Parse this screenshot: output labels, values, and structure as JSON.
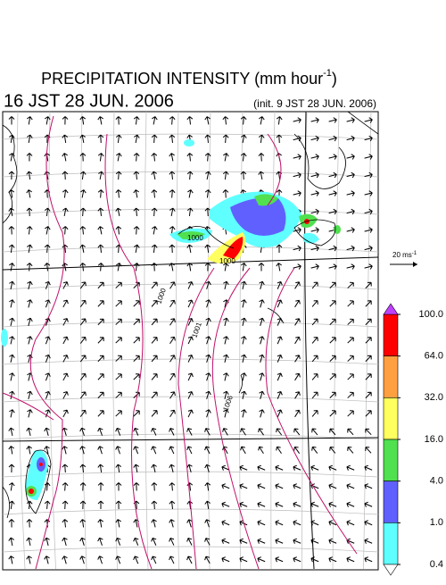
{
  "header": {
    "title": "PRECIPITATION INTENSITY (mm hour",
    "title_superscript": "-1",
    "title_close": ")",
    "valid_time": "16 JST 28 JUN. 2006",
    "init_time": "(init. 9 JST 28 JUN. 2006)"
  },
  "wind_scale": {
    "label": "20 ms",
    "superscript": "-1"
  },
  "colorbar": {
    "ticks": [
      {
        "value": 100,
        "label": "100.0"
      },
      {
        "value": 64,
        "label": "64.0"
      },
      {
        "value": 32,
        "label": "32.0"
      },
      {
        "value": 16,
        "label": "16.0"
      },
      {
        "value": 4,
        "label": "4.0"
      },
      {
        "value": 1,
        "label": "1.0"
      },
      {
        "value": 0.4,
        "label": "0.4"
      }
    ],
    "colors": [
      "#ff0000",
      "#ffa040",
      "#ffff60",
      "#50e050",
      "#6060ff",
      "#60ffff"
    ],
    "over_color": "#c040ff",
    "under_color": "#ffffff"
  },
  "isobars": [
    "1000",
    "1000",
    "1000",
    "1001",
    "1006"
  ]
}
